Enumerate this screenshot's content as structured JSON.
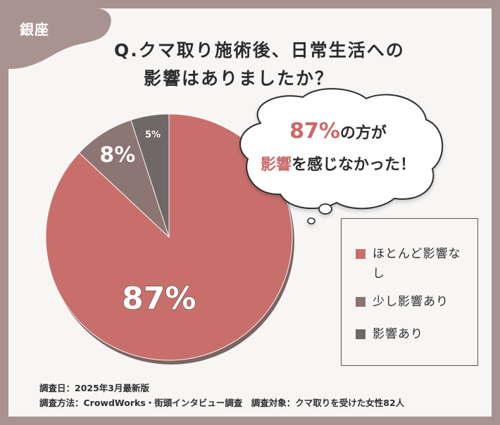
{
  "corner_label": "銀座",
  "title": {
    "line1": "Q.クマ取り施術後、日常生活への",
    "line2": "影響はありましたか？"
  },
  "bubble": {
    "pct": "87%",
    "line1_rest": "の方が",
    "line2_highlight": "影響",
    "line2_rest": "を感じなかった！"
  },
  "colors": {
    "none": "#c96f6b",
    "little": "#8c7572",
    "some": "#6e6866",
    "background": "#a89390"
  },
  "chart_data": {
    "type": "pie",
    "categories": [
      "ほとんど影響なし",
      "少し影響あり",
      "影響あり"
    ],
    "values": [
      87,
      8,
      5
    ],
    "labels": [
      "87%",
      "8%",
      "5%"
    ],
    "legend_position": "right"
  },
  "legend": [
    {
      "label": "ほとんど影響なし"
    },
    {
      "label": "少し影響あり"
    },
    {
      "label": "影響あり"
    }
  ],
  "footer": {
    "line1": "調査日：2025年3月最新版",
    "line2": "調査方法：CrowdWorks・街頭インタビュー調査　調査対象：クマ取りを受けた女性82人"
  }
}
